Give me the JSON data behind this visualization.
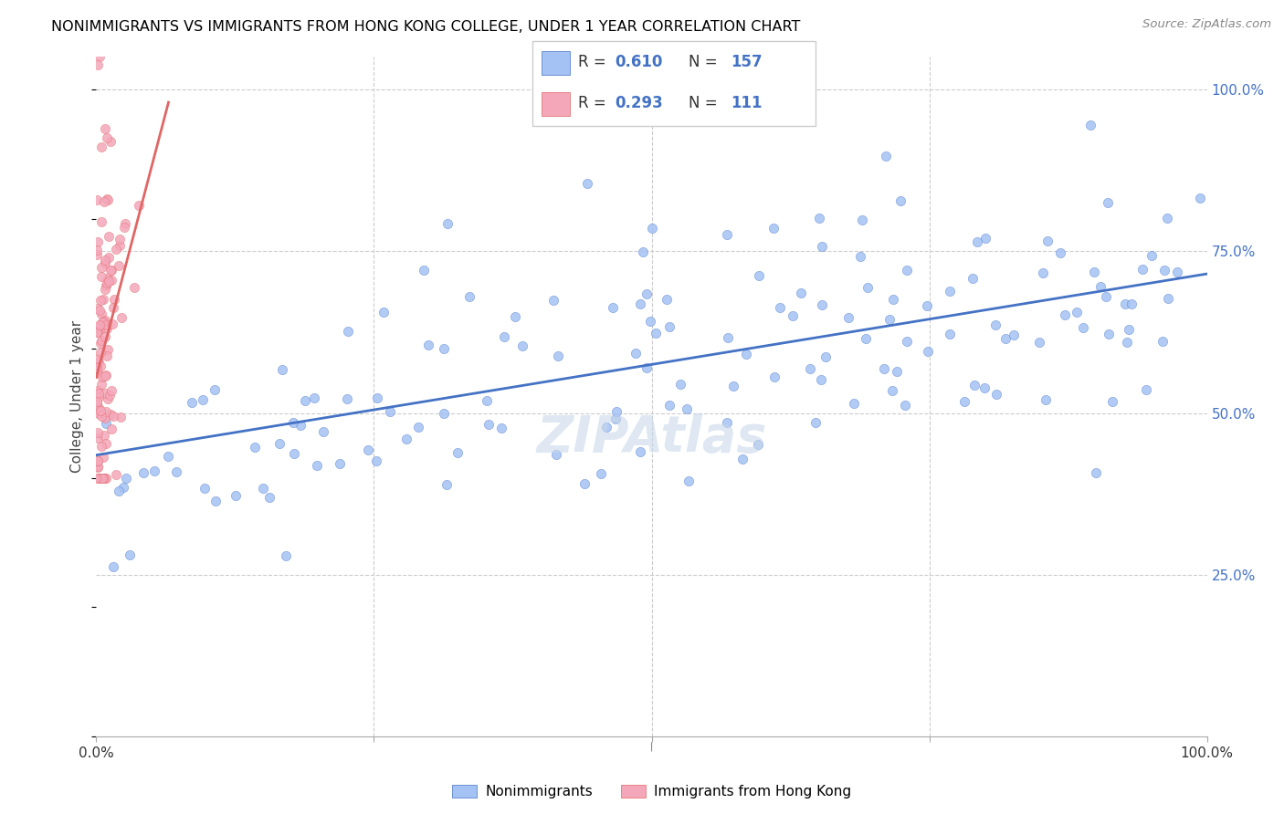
{
  "title": "NONIMMIGRANTS VS IMMIGRANTS FROM HONG KONG COLLEGE, UNDER 1 YEAR CORRELATION CHART",
  "source": "Source: ZipAtlas.com",
  "ylabel": "College, Under 1 year",
  "legend_label1": "Nonimmigrants",
  "legend_label2": "Immigrants from Hong Kong",
  "R1": "0.610",
  "N1": "157",
  "R2": "0.293",
  "N2": "111",
  "color1": "#a4c2f4",
  "color2": "#f4a7b9",
  "trendline_color1": "#4472c4",
  "trendline_color2": "#e06666",
  "watermark": "ZIPAtlas",
  "background_color": "#ffffff",
  "grid_color": "#cccccc",
  "title_color": "#000000",
  "right_axis_color": "#4472c4",
  "trendline1_x0": 0.0,
  "trendline1_y0": 0.435,
  "trendline1_x1": 1.0,
  "trendline1_y1": 0.715,
  "trendline2_x0": 0.0,
  "trendline2_y0": 0.555,
  "trendline2_x1": 0.065,
  "trendline2_y1": 0.98,
  "ylim_min": 0.0,
  "ylim_max": 1.05,
  "xlim_min": 0.0,
  "xlim_max": 1.0
}
